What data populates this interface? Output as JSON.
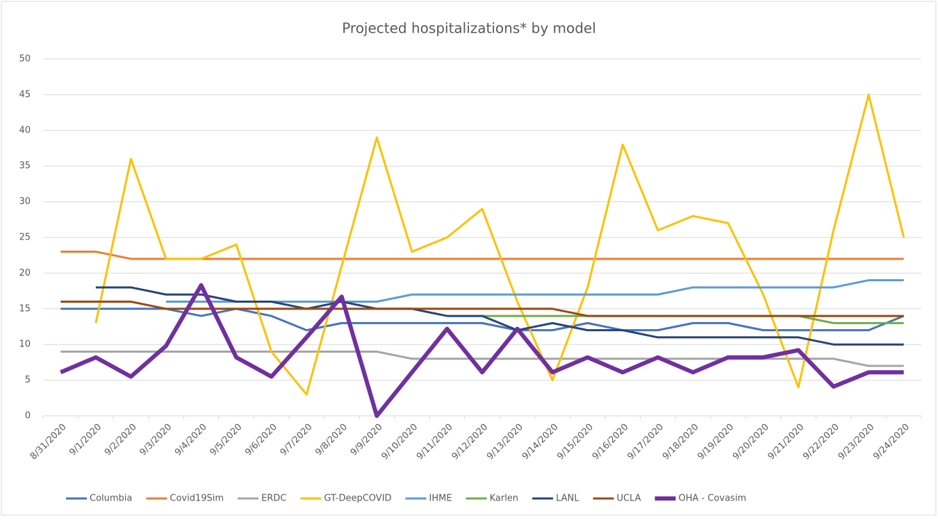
{
  "chart_data": {
    "type": "line",
    "title": "Projected hospitalizations* by model",
    "categories": [
      "8/31/2020",
      "9/1/2020",
      "9/2/2020",
      "9/3/2020",
      "9/4/2020",
      "9/5/2020",
      "9/6/2020",
      "9/7/2020",
      "9/8/2020",
      "9/9/2020",
      "9/10/2020",
      "9/11/2020",
      "9/12/2020",
      "9/13/2020",
      "9/14/2020",
      "9/15/2020",
      "9/16/2020",
      "9/17/2020",
      "9/18/2020",
      "9/19/2020",
      "9/20/2020",
      "9/21/2020",
      "9/22/2020",
      "9/23/2020",
      "9/24/2020"
    ],
    "ylim": [
      0,
      50
    ],
    "yticks": [
      0,
      5,
      10,
      15,
      20,
      25,
      30,
      35,
      40,
      45,
      50
    ],
    "grid": true,
    "legend": "bottom",
    "series": [
      {
        "name": "Columbia",
        "color": "#4472c4",
        "width": 3,
        "values": [
          15,
          15,
          15,
          15,
          14,
          15,
          14,
          12,
          13,
          13,
          13,
          13,
          13,
          12,
          12,
          13,
          12,
          12,
          13,
          13,
          12,
          12,
          12,
          12,
          14
        ]
      },
      {
        "name": "Covid19Sim",
        "color": "#ed7d31",
        "width": 3,
        "values": [
          23,
          23,
          22,
          22,
          22,
          22,
          22,
          22,
          22,
          22,
          22,
          22,
          22,
          22,
          22,
          22,
          22,
          22,
          22,
          22,
          22,
          22,
          22,
          22,
          22
        ]
      },
      {
        "name": "ERDC",
        "color": "#a5a5a5",
        "width": 3,
        "values": [
          9,
          9,
          9,
          9,
          9,
          9,
          9,
          9,
          9,
          9,
          8,
          8,
          8,
          8,
          8,
          8,
          8,
          8,
          8,
          8,
          8,
          8,
          8,
          7,
          7
        ]
      },
      {
        "name": "GT-DeepCOVID",
        "color": "#ffc000",
        "width": 3,
        "values": [
          null,
          13,
          36,
          22,
          22,
          24,
          9,
          3,
          21,
          39,
          23,
          25,
          29,
          16,
          5,
          18,
          38,
          26,
          28,
          27,
          17,
          4,
          26,
          45,
          25
        ]
      },
      {
        "name": "IHME",
        "color": "#5b9bd5",
        "width": 3,
        "values": [
          null,
          null,
          null,
          16,
          16,
          16,
          16,
          16,
          16,
          16,
          17,
          17,
          17,
          17,
          17,
          17,
          17,
          17,
          18,
          18,
          18,
          18,
          18,
          19,
          19
        ]
      },
      {
        "name": "Karlen",
        "color": "#70ad47",
        "width": 3,
        "values": [
          null,
          null,
          null,
          null,
          null,
          null,
          null,
          null,
          null,
          null,
          null,
          null,
          14,
          14,
          14,
          14,
          14,
          14,
          14,
          14,
          14,
          14,
          13,
          13,
          13
        ]
      },
      {
        "name": "LANL",
        "color": "#264478",
        "width": 3,
        "values": [
          null,
          18,
          18,
          17,
          17,
          16,
          16,
          15,
          16,
          15,
          15,
          14,
          14,
          12,
          13,
          12,
          12,
          11,
          11,
          11,
          11,
          11,
          10,
          10,
          10
        ]
      },
      {
        "name": "UCLA",
        "color": "#9e480e",
        "width": 3,
        "values": [
          16,
          16,
          16,
          15,
          15,
          15,
          15,
          15,
          15,
          15,
          15,
          15,
          15,
          15,
          15,
          14,
          14,
          14,
          14,
          14,
          14,
          14,
          14,
          14,
          14
        ]
      },
      {
        "name": "OHA - Covasim",
        "color": "#7030a0",
        "width": 6,
        "values": [
          6.1,
          8.2,
          5.5,
          9.8,
          18.3,
          8.2,
          5.5,
          11,
          16.7,
          0,
          6.1,
          12.2,
          6.1,
          12.2,
          6.1,
          8.2,
          6.1,
          8.2,
          6.1,
          8.2,
          8.2,
          9.2,
          4.1,
          6.1,
          6.1
        ]
      }
    ]
  }
}
